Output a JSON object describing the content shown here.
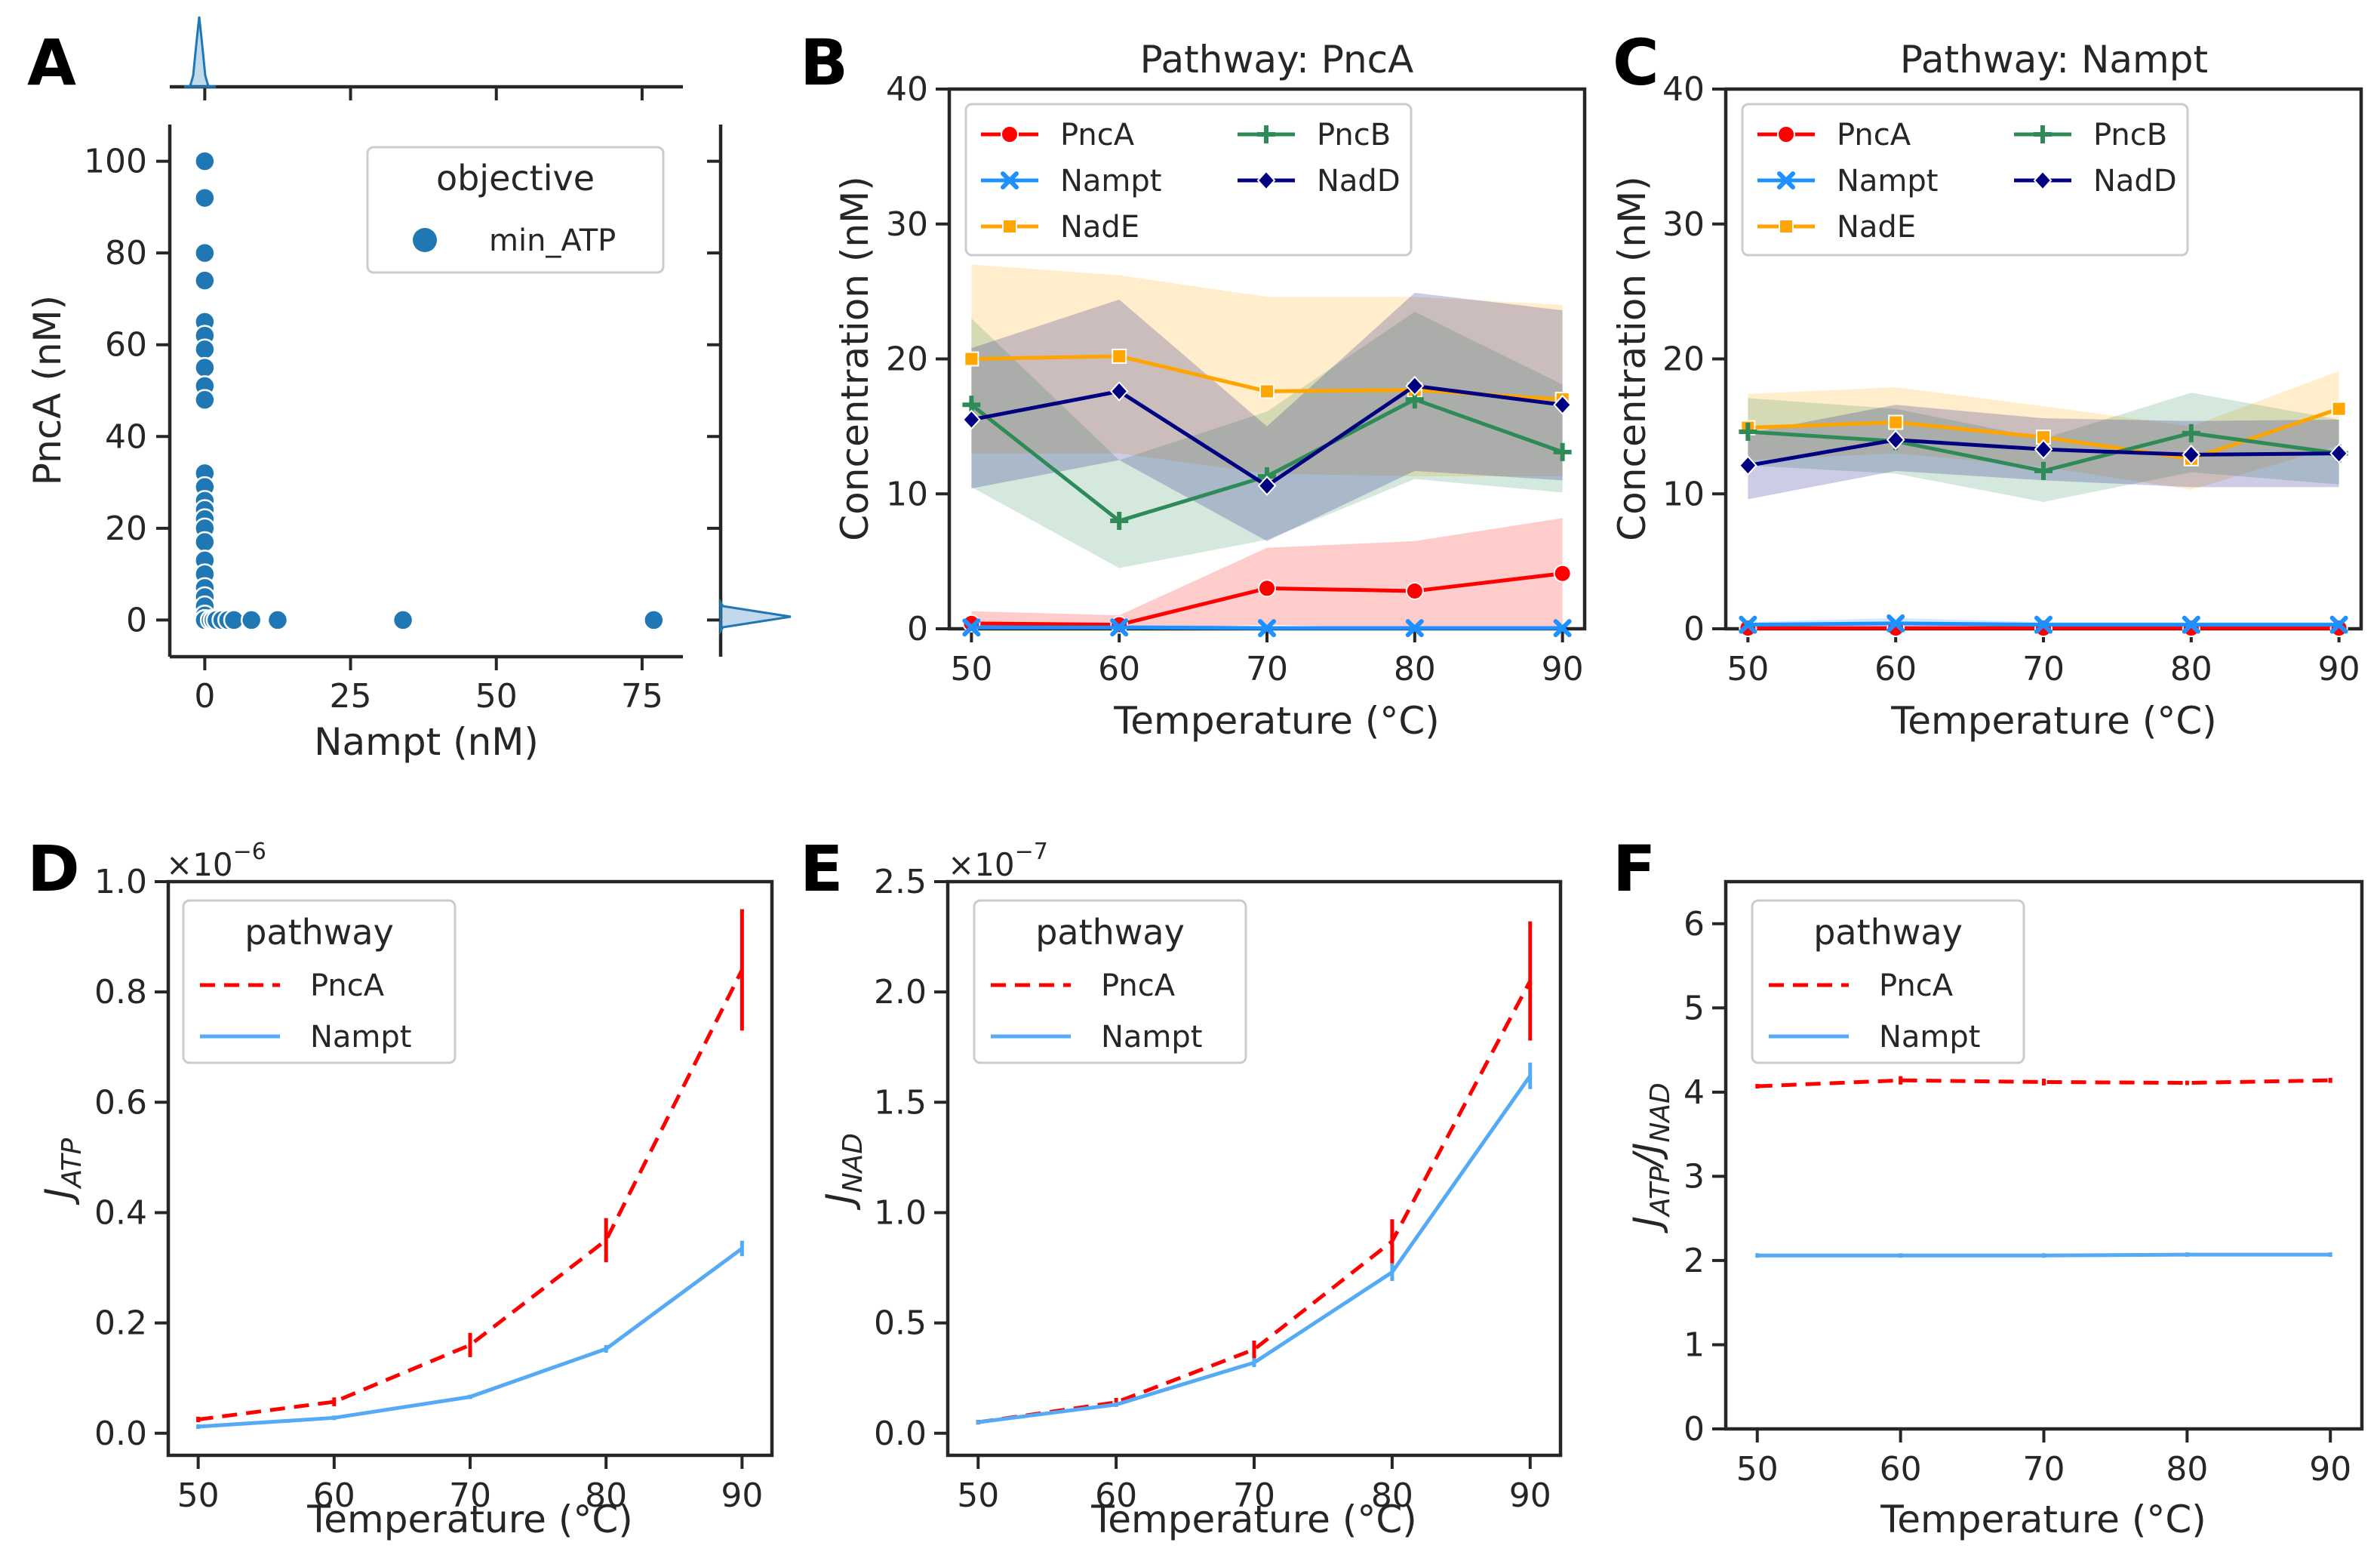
{
  "colors": {
    "PncA": "#ff0000",
    "Nampt": "#1e90ff",
    "NadE": "#ffa500",
    "PncB": "#2e8b57",
    "NadD": "#000080",
    "scatter": "#1f77b4",
    "line_PncA": "#ff0000",
    "line_Nampt": "#55aaf5"
  },
  "panels": {
    "A": {
      "letter": "A",
      "xlabel": "Nampt (nM)",
      "ylabel": "PncA (nM)",
      "xticks": [
        "0",
        "25",
        "50",
        "75"
      ],
      "yticks": [
        "0",
        "20",
        "40",
        "60",
        "80",
        "100"
      ],
      "legend_title": "objective",
      "legend_item": "min_ATP"
    },
    "B": {
      "letter": "B",
      "title": "Pathway: PncA",
      "xlabel": "Temperature (°C)",
      "ylabel": "Concentration (nM)",
      "xticks": [
        "50",
        "60",
        "70",
        "80",
        "90"
      ],
      "yticks": [
        "0",
        "10",
        "20",
        "30",
        "40"
      ],
      "legend": [
        "PncA",
        "Nampt",
        "NadE",
        "PncB",
        "NadD"
      ]
    },
    "C": {
      "letter": "C",
      "title": "Pathway: Nampt",
      "xlabel": "Temperature (°C)",
      "ylabel": "Concentration (nM)",
      "xticks": [
        "50",
        "60",
        "70",
        "80",
        "90"
      ],
      "yticks": [
        "0",
        "10",
        "20",
        "30",
        "40"
      ],
      "legend": [
        "PncA",
        "Nampt",
        "NadE",
        "PncB",
        "NadD"
      ]
    },
    "D": {
      "letter": "D",
      "xlabel": "Temperature (°C)",
      "ylabel_main": "J",
      "ylabel_sub": "ATP",
      "scale": "×10",
      "scale_exp": "−6",
      "xticks": [
        "50",
        "60",
        "70",
        "80",
        "90"
      ],
      "yticks": [
        "0.0",
        "0.2",
        "0.4",
        "0.6",
        "0.8",
        "1.0"
      ],
      "legend_title": "pathway",
      "legend": [
        "PncA",
        "Nampt"
      ]
    },
    "E": {
      "letter": "E",
      "xlabel": "Temperature (°C)",
      "ylabel_main": "J",
      "ylabel_sub": "NAD",
      "scale": "×10",
      "scale_exp": "−7",
      "xticks": [
        "50",
        "60",
        "70",
        "80",
        "90"
      ],
      "yticks": [
        "0.0",
        "0.5",
        "1.0",
        "1.5",
        "2.0",
        "2.5"
      ],
      "legend_title": "pathway",
      "legend": [
        "PncA",
        "Nampt"
      ]
    },
    "F": {
      "letter": "F",
      "xlabel": "Temperature (°C)",
      "ylabel_main1": "J",
      "ylabel_sub1": "ATP",
      "ylabel_slash": "/",
      "ylabel_main2": "J",
      "ylabel_sub2": "NAD",
      "xticks": [
        "50",
        "60",
        "70",
        "80",
        "90"
      ],
      "yticks": [
        "0",
        "1",
        "2",
        "3",
        "4",
        "5",
        "6"
      ],
      "legend_title": "pathway",
      "legend": [
        "PncA",
        "Nampt"
      ]
    }
  },
  "chart_data": [
    {
      "panel": "A",
      "type": "scatter",
      "xlabel": "Nampt (nM)",
      "ylabel": "PncA (nM)",
      "xlim": [
        -6,
        82
      ],
      "ylim": [
        -8,
        108
      ],
      "series": [
        {
          "name": "min_ATP",
          "x": [
            0,
            0,
            0,
            0,
            0,
            0,
            0,
            0,
            0,
            0,
            0,
            0,
            0,
            0,
            0,
            0,
            0,
            0,
            0,
            0,
            0,
            0,
            0,
            0,
            0,
            0,
            0,
            0,
            0,
            0,
            0,
            0,
            0,
            0,
            0,
            0,
            1,
            1.5,
            2,
            3,
            4,
            5,
            8,
            12.5,
            34,
            77
          ],
          "y": [
            100,
            92,
            80,
            74,
            65,
            62,
            59,
            55,
            51,
            48,
            32,
            29,
            26,
            24,
            22,
            20,
            17,
            13,
            10,
            7,
            5,
            3,
            1,
            0,
            0,
            0,
            0,
            0,
            0,
            0,
            0,
            0,
            0,
            0,
            0,
            0,
            0,
            0,
            0,
            0,
            0,
            0,
            0,
            0,
            0,
            0
          ]
        }
      ]
    },
    {
      "panel": "B",
      "type": "line",
      "title": "Pathway: PncA",
      "xlabel": "Temperature (°C)",
      "ylabel": "Concentration (nM)",
      "x": [
        50,
        60,
        70,
        80,
        90
      ],
      "xlim": [
        48.5,
        91.5
      ],
      "ylim": [
        0,
        40
      ],
      "series": [
        {
          "name": "PncA",
          "values": [
            0.4,
            0.3,
            3.0,
            2.8,
            4.1
          ],
          "lower": [
            0.0,
            0.0,
            0.3,
            0.0,
            0.0
          ],
          "upper": [
            1.3,
            1.0,
            6.0,
            6.5,
            8.2
          ]
        },
        {
          "name": "Nampt",
          "values": [
            0.1,
            0.1,
            0.05,
            0.05,
            0.05
          ],
          "lower": [
            0.0,
            0.0,
            0.0,
            0.0,
            0.0
          ],
          "upper": [
            0.3,
            0.3,
            0.2,
            0.2,
            0.2
          ]
        },
        {
          "name": "NadE",
          "values": [
            20.0,
            20.2,
            17.6,
            17.7,
            17.0
          ],
          "lower": [
            13.0,
            13.0,
            11.5,
            11.3,
            11.3
          ],
          "upper": [
            27.0,
            26.2,
            24.6,
            24.6,
            24.0
          ]
        },
        {
          "name": "PncB",
          "values": [
            16.6,
            8.0,
            11.3,
            17.0,
            13.1
          ],
          "lower": [
            10.5,
            4.5,
            6.6,
            11.1,
            10.1
          ],
          "upper": [
            23.0,
            12.5,
            16.1,
            23.5,
            18.1
          ]
        },
        {
          "name": "NadD",
          "values": [
            15.5,
            17.6,
            10.6,
            18.0,
            16.6
          ],
          "lower": [
            10.4,
            12.5,
            6.5,
            11.7,
            11.0
          ],
          "upper": [
            20.8,
            24.4,
            15.0,
            24.9,
            23.6
          ]
        }
      ]
    },
    {
      "panel": "C",
      "type": "line",
      "title": "Pathway: Nampt",
      "xlabel": "Temperature (°C)",
      "ylabel": "Concentration (nM)",
      "x": [
        50,
        60,
        70,
        80,
        90
      ],
      "xlim": [
        48.5,
        91.5
      ],
      "ylim": [
        0,
        40
      ],
      "series": [
        {
          "name": "PncA",
          "values": [
            0.05,
            0.05,
            0.05,
            0.05,
            0.05
          ],
          "lower": [
            0.0,
            0.0,
            0.0,
            0.0,
            0.0
          ],
          "upper": [
            0.15,
            0.15,
            0.15,
            0.15,
            0.15
          ]
        },
        {
          "name": "Nampt",
          "values": [
            0.3,
            0.4,
            0.3,
            0.3,
            0.3
          ],
          "lower": [
            0.1,
            0.1,
            0.1,
            0.1,
            0.1
          ],
          "upper": [
            0.5,
            0.8,
            0.5,
            0.5,
            0.5
          ]
        },
        {
          "name": "NadE",
          "values": [
            14.9,
            15.3,
            14.2,
            12.6,
            16.3
          ],
          "lower": [
            12.5,
            13.0,
            12.0,
            10.3,
            13.6
          ],
          "upper": [
            17.4,
            17.9,
            16.5,
            15.0,
            19.1
          ]
        },
        {
          "name": "PncB",
          "values": [
            14.6,
            13.9,
            11.7,
            14.5,
            13.0
          ],
          "lower": [
            12.1,
            11.5,
            9.4,
            11.6,
            10.7
          ],
          "upper": [
            17.1,
            16.3,
            14.1,
            17.5,
            15.5
          ]
        },
        {
          "name": "NadD",
          "values": [
            12.1,
            14.0,
            13.3,
            12.9,
            13.0
          ],
          "lower": [
            9.6,
            11.7,
            11.0,
            10.5,
            10.5
          ],
          "upper": [
            14.5,
            16.6,
            15.6,
            15.4,
            15.5
          ]
        }
      ]
    },
    {
      "panel": "D",
      "type": "line",
      "xlabel": "Temperature (°C)",
      "ylabel": "J_ATP",
      "y_multiplier": "1e-6",
      "x": [
        50,
        60,
        70,
        80,
        90
      ],
      "xlim": [
        47.8,
        92.2
      ],
      "ylim": [
        -0.04,
        1.0
      ],
      "series": [
        {
          "name": "PncA",
          "values": [
            0.025,
            0.057,
            0.16,
            0.35,
            0.84
          ],
          "err": [
            0.005,
            0.008,
            0.022,
            0.04,
            0.11
          ]
        },
        {
          "name": "Nampt",
          "values": [
            0.012,
            0.028,
            0.066,
            0.153,
            0.335
          ],
          "err": [
            0.002,
            0.003,
            0.004,
            0.007,
            0.014
          ]
        }
      ]
    },
    {
      "panel": "E",
      "type": "line",
      "xlabel": "Temperature (°C)",
      "ylabel": "J_NAD",
      "y_multiplier": "1e-7",
      "x": [
        50,
        60,
        70,
        80,
        90
      ],
      "xlim": [
        47.8,
        92.2
      ],
      "ylim": [
        -0.1,
        2.5
      ],
      "series": [
        {
          "name": "PncA",
          "values": [
            0.05,
            0.14,
            0.38,
            0.87,
            2.05
          ],
          "err": [
            0.01,
            0.02,
            0.04,
            0.1,
            0.27
          ]
        },
        {
          "name": "Nampt",
          "values": [
            0.05,
            0.13,
            0.32,
            0.73,
            1.62
          ],
          "err": [
            0.005,
            0.01,
            0.02,
            0.04,
            0.06
          ]
        }
      ]
    },
    {
      "panel": "F",
      "type": "line",
      "xlabel": "Temperature (°C)",
      "ylabel": "J_ATP/J_NAD",
      "x": [
        50,
        60,
        70,
        80,
        90
      ],
      "xlim": [
        47.8,
        92.2
      ],
      "ylim": [
        0,
        6.5
      ],
      "series": [
        {
          "name": "PncA",
          "values": [
            4.07,
            4.14,
            4.12,
            4.11,
            4.14
          ],
          "err": [
            0.02,
            0.05,
            0.04,
            0.02,
            0.03
          ]
        },
        {
          "name": "Nampt",
          "values": [
            2.06,
            2.06,
            2.06,
            2.07,
            2.07
          ],
          "err": [
            0.01,
            0.01,
            0.01,
            0.01,
            0.01
          ]
        }
      ]
    }
  ]
}
